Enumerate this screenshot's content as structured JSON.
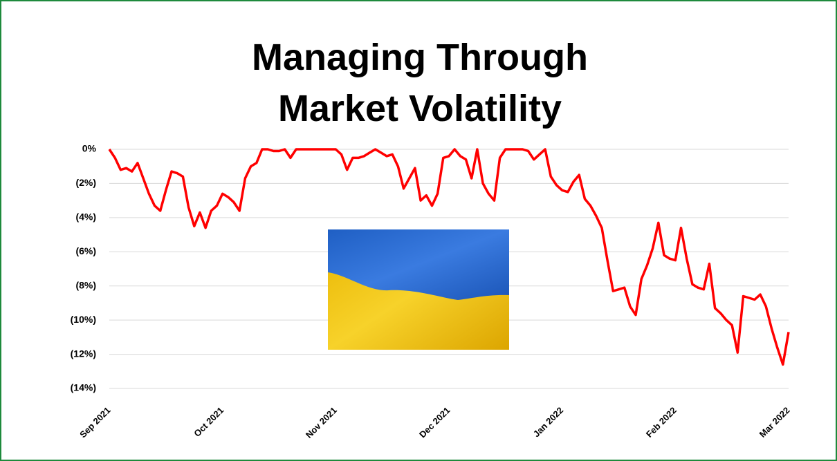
{
  "chart_data": {
    "type": "line",
    "title": "Managing Through Market Volatility",
    "categories": [
      "Sep 2021",
      null,
      null,
      null,
      null,
      null,
      null,
      null,
      null,
      null,
      null,
      null,
      null,
      null,
      null,
      null,
      null,
      null,
      null,
      null,
      "Oct 2021",
      null,
      null,
      null,
      null,
      null,
      null,
      null,
      null,
      null,
      null,
      null,
      null,
      null,
      null,
      null,
      null,
      null,
      null,
      null,
      "Nov 2021",
      null,
      null,
      null,
      null,
      null,
      null,
      null,
      null,
      null,
      null,
      null,
      null,
      null,
      null,
      null,
      null,
      null,
      null,
      null,
      "Dec 2021",
      null,
      null,
      null,
      null,
      null,
      null,
      null,
      null,
      null,
      null,
      null,
      null,
      null,
      null,
      null,
      null,
      null,
      null,
      null,
      "Jan 2022",
      null,
      null,
      null,
      null,
      null,
      null,
      null,
      null,
      null,
      null,
      null,
      null,
      null,
      null,
      null,
      null,
      null,
      null,
      null,
      "Feb 2022",
      null,
      null,
      null,
      null,
      null,
      null,
      null,
      null,
      null,
      null,
      null,
      null,
      null,
      null,
      null,
      null,
      null,
      null,
      null,
      "Mar 2022"
    ],
    "values": [
      0,
      -0.5,
      -1.2,
      -1.1,
      -1.3,
      -0.8,
      -1.7,
      -2.6,
      -3.3,
      -3.6,
      -2.4,
      -1.3,
      -1.4,
      -1.6,
      -3.4,
      -4.5,
      -3.7,
      -4.6,
      -3.6,
      -3.3,
      -2.6,
      -2.8,
      -3.1,
      -3.6,
      -1.7,
      -1.0,
      -0.8,
      0,
      0,
      -0.1,
      -0.1,
      0,
      -0.5,
      0,
      0,
      0,
      0,
      0,
      0,
      0,
      0,
      -0.3,
      -1.2,
      -0.5,
      -0.5,
      -0.4,
      -0.2,
      0,
      -0.2,
      -0.4,
      -0.3,
      -1.0,
      -2.3,
      -1.7,
      -1.1,
      -3.0,
      -2.7,
      -3.3,
      -2.6,
      -0.5,
      -0.4,
      0,
      -0.4,
      -0.6,
      -1.7,
      0,
      -2.0,
      -2.6,
      -3.0,
      -0.5,
      0,
      0,
      0,
      0,
      -0.1,
      -0.6,
      -0.3,
      0,
      -1.6,
      -2.1,
      -2.4,
      -2.5,
      -1.9,
      -1.5,
      -2.9,
      -3.3,
      -3.9,
      -4.6,
      -6.5,
      -8.3,
      -8.2,
      -8.1,
      -9.2,
      -9.7,
      -7.6,
      -6.8,
      -5.8,
      -4.3,
      -6.2,
      -6.4,
      -6.5,
      -4.6,
      -6.4,
      -7.9,
      -8.1,
      -8.2,
      -6.7,
      -9.3,
      -9.6,
      -10.0,
      -10.3,
      -11.9,
      -8.6,
      -8.7,
      -8.8,
      -8.5,
      -9.2,
      -10.5,
      -11.6,
      -12.6,
      -10.7
    ],
    "color": "#ff0000",
    "ylim": [
      -14,
      0
    ],
    "yticks": [
      {
        "value": 0,
        "label": "0%"
      },
      {
        "value": -2,
        "label": "(2%)"
      },
      {
        "value": -4,
        "label": "(4%)"
      },
      {
        "value": -6,
        "label": "(6%)"
      },
      {
        "value": -8,
        "label": "(8%)"
      },
      {
        "value": -10,
        "label": "(10%)"
      },
      {
        "value": -12,
        "label": "(12%)"
      },
      {
        "value": -14,
        "label": "(14%)"
      }
    ],
    "grid": true
  }
}
